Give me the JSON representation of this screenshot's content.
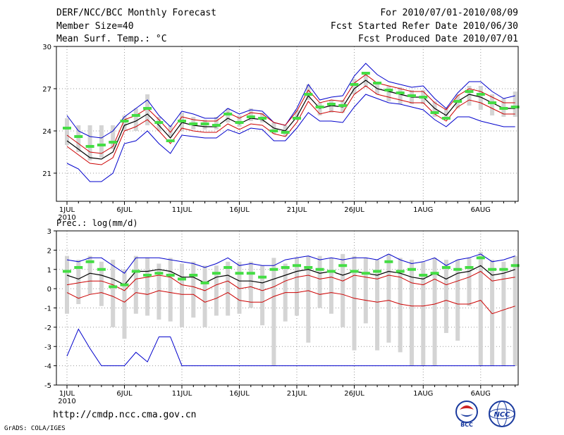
{
  "header": {
    "title": "DERF/NCC/BCC Monthly Forecast",
    "member_size": "Member Size=40",
    "variable1": "Mean Surf. Temp.: °C",
    "period": "For 2010/07/01-2010/08/09",
    "fcst_started": "Fcst Started Refer Date 2010/06/30",
    "fcst_produced": "Fcst Produced Date 2010/07/01"
  },
  "footer": {
    "url": "http://cmdp.ncc.cma.gov.cn",
    "grads": "GrADS: COLA/IGES",
    "logo_bcc_label": "BCC",
    "logo_ncc_label": "NCC"
  },
  "colors": {
    "ensemble_mean": "#000000",
    "upper_bound": "#0000cc",
    "lower_bound": "#0000cc",
    "mean_band": "#cc0000",
    "observation": "#44dd44",
    "spread_bar": "#d4d4d4",
    "grid": "#999999"
  },
  "chart_data": [
    {
      "type": "line",
      "title": "Mean Surf. Temp.: °C",
      "xlabel": "",
      "ylabel": "",
      "x": [
        1,
        2,
        3,
        4,
        5,
        6,
        7,
        8,
        9,
        10,
        11,
        12,
        13,
        14,
        15,
        16,
        17,
        18,
        19,
        20,
        21,
        22,
        23,
        24,
        25,
        26,
        27,
        28,
        29,
        30,
        31,
        32,
        33,
        34,
        35,
        36,
        37,
        38,
        39,
        40
      ],
      "x_tick_labels": [
        "1JUL",
        "6JUL",
        "11JUL",
        "16JUL",
        "21JUL",
        "26JUL",
        "1AUG",
        "6AUG"
      ],
      "x_tick_positions": [
        1,
        6,
        11,
        16,
        21,
        26,
        32,
        37
      ],
      "year_label": "2010",
      "ylim": [
        19,
        30
      ],
      "y_ticks": [
        21,
        24,
        27,
        30
      ],
      "series": [
        {
          "name": "ensemble_mean",
          "values": [
            23.3,
            22.7,
            22.1,
            22.0,
            22.5,
            24.4,
            24.7,
            25.2,
            24.4,
            23.5,
            24.6,
            24.4,
            24.3,
            24.3,
            24.9,
            24.5,
            24.9,
            24.8,
            24.2,
            24.0,
            25.0,
            26.5,
            25.6,
            25.8,
            25.7,
            27.0,
            27.6,
            27.0,
            26.8,
            26.6,
            26.4,
            26.4,
            25.6,
            25.1,
            26.1,
            26.6,
            26.4,
            26.0,
            25.6,
            25.6
          ]
        },
        {
          "name": "upper_bound",
          "values": [
            25.1,
            24.0,
            23.6,
            23.5,
            24.0,
            25.0,
            25.6,
            26.2,
            25.1,
            24.3,
            25.4,
            25.2,
            24.9,
            24.9,
            25.6,
            25.2,
            25.5,
            25.4,
            24.6,
            24.4,
            25.6,
            27.3,
            26.2,
            26.4,
            26.5,
            27.9,
            28.8,
            28.0,
            27.5,
            27.3,
            27.1,
            27.2,
            26.3,
            25.6,
            26.7,
            27.5,
            27.5,
            26.8,
            26.3,
            26.5
          ]
        },
        {
          "name": "lower_bound",
          "values": [
            21.7,
            21.3,
            20.4,
            20.4,
            21.0,
            23.1,
            23.3,
            24.0,
            23.1,
            22.4,
            23.7,
            23.6,
            23.5,
            23.5,
            24.1,
            23.8,
            24.2,
            24.1,
            23.3,
            23.3,
            24.2,
            25.3,
            24.7,
            24.7,
            24.6,
            25.7,
            26.6,
            26.3,
            26.0,
            25.9,
            25.7,
            25.5,
            24.8,
            24.3,
            25.0,
            25.0,
            24.7,
            24.5,
            24.3,
            24.3
          ]
        },
        {
          "name": "mean_plus",
          "values": [
            23.7,
            23.1,
            22.5,
            22.4,
            22.9,
            24.8,
            25.1,
            25.6,
            24.8,
            23.9,
            25.0,
            24.8,
            24.7,
            24.7,
            25.3,
            24.9,
            25.3,
            25.2,
            24.6,
            24.4,
            25.4,
            26.9,
            26.0,
            26.2,
            26.1,
            27.4,
            28.0,
            27.4,
            27.2,
            27.0,
            26.8,
            26.8,
            26.0,
            25.5,
            26.5,
            27.0,
            26.8,
            26.4,
            26.0,
            26.0
          ]
        },
        {
          "name": "mean_minus",
          "values": [
            22.9,
            22.3,
            21.7,
            21.6,
            22.1,
            24.0,
            24.3,
            24.8,
            24.0,
            23.1,
            24.2,
            24.0,
            23.9,
            23.9,
            24.5,
            24.1,
            24.5,
            24.4,
            23.8,
            23.6,
            24.6,
            26.1,
            25.2,
            25.4,
            25.3,
            26.6,
            27.2,
            26.6,
            26.4,
            26.2,
            26.0,
            26.0,
            25.2,
            24.7,
            25.7,
            26.2,
            26.0,
            25.6,
            25.2,
            25.2
          ]
        },
        {
          "name": "observation",
          "values": [
            24.2,
            23.6,
            22.9,
            23.0,
            23.2,
            24.7,
            25.1,
            25.6,
            24.6,
            23.3,
            24.7,
            24.5,
            24.5,
            24.4,
            25.2,
            24.6,
            25.0,
            24.9,
            24.0,
            23.9,
            24.9,
            26.6,
            25.7,
            25.9,
            25.8,
            27.3,
            28.1,
            27.4,
            26.9,
            26.7,
            26.5,
            26.4,
            25.3,
            24.9,
            26.1,
            26.8,
            26.6,
            26.0,
            25.6,
            25.7
          ]
        },
        {
          "name": "spread_bar_top",
          "values": [
            24.9,
            24.4,
            24.4,
            24.4,
            24.4,
            25.1,
            25.6,
            26.6,
            25.0,
            24.4,
            25.3,
            25.0,
            24.8,
            25.0,
            25.6,
            25.1,
            25.6,
            25.3,
            24.6,
            24.4,
            25.5,
            27.3,
            26.0,
            26.2,
            26.2,
            27.7,
            28.2,
            27.4,
            27.2,
            27.1,
            26.9,
            26.9,
            26.1,
            25.6,
            26.6,
            27.2,
            27.2,
            26.6,
            26.3,
            26.8
          ]
        },
        {
          "name": "spread_bar_bottom",
          "values": [
            23.0,
            22.5,
            21.9,
            22.1,
            22.7,
            24.0,
            24.0,
            24.4,
            24.0,
            23.6,
            24.0,
            24.1,
            24.1,
            24.1,
            24.6,
            24.3,
            24.7,
            24.6,
            23.8,
            23.6,
            24.8,
            26.2,
            25.1,
            25.3,
            25.3,
            26.6,
            27.1,
            26.6,
            26.1,
            25.9,
            25.9,
            25.9,
            25.0,
            24.8,
            25.6,
            25.8,
            25.5,
            25.1,
            25.0,
            25.0
          ]
        }
      ]
    },
    {
      "type": "line",
      "title": "Prec.: log(mm/d)",
      "xlabel": "",
      "ylabel": "",
      "x": [
        1,
        2,
        3,
        4,
        5,
        6,
        7,
        8,
        9,
        10,
        11,
        12,
        13,
        14,
        15,
        16,
        17,
        18,
        19,
        20,
        21,
        22,
        23,
        24,
        25,
        26,
        27,
        28,
        29,
        30,
        31,
        32,
        33,
        34,
        35,
        36,
        37,
        38,
        39,
        40
      ],
      "x_tick_labels": [
        "1JUL",
        "6JUL",
        "11JUL",
        "16JUL",
        "21JUL",
        "26JUL",
        "1AUG",
        "6AUG"
      ],
      "x_tick_positions": [
        1,
        6,
        11,
        16,
        21,
        26,
        32,
        37
      ],
      "year_label": "2010",
      "ylim": [
        -5,
        3
      ],
      "y_ticks": [
        -5,
        -4,
        -3,
        -2,
        -1,
        0,
        1,
        2,
        3
      ],
      "series": [
        {
          "name": "ensemble_mean",
          "values": [
            0.7,
            0.5,
            0.8,
            0.7,
            0.5,
            0.2,
            0.9,
            0.9,
            1.0,
            0.9,
            0.6,
            0.6,
            0.3,
            0.6,
            0.7,
            0.4,
            0.4,
            0.3,
            0.5,
            0.7,
            0.9,
            1.0,
            0.8,
            0.9,
            0.7,
            0.9,
            0.8,
            0.7,
            0.9,
            0.8,
            0.6,
            0.5,
            0.8,
            0.5,
            0.8,
            0.9,
            1.2,
            0.7,
            0.8,
            1.0
          ]
        },
        {
          "name": "upper_bound",
          "values": [
            1.5,
            1.4,
            1.6,
            1.6,
            1.2,
            0.8,
            1.6,
            1.6,
            1.6,
            1.5,
            1.4,
            1.3,
            1.1,
            1.3,
            1.6,
            1.2,
            1.3,
            1.2,
            1.2,
            1.5,
            1.6,
            1.7,
            1.5,
            1.6,
            1.5,
            1.6,
            1.6,
            1.5,
            1.8,
            1.5,
            1.3,
            1.4,
            1.6,
            1.2,
            1.5,
            1.6,
            1.8,
            1.4,
            1.5,
            1.7
          ]
        },
        {
          "name": "lower_bound",
          "values": [
            -3.5,
            -2.1,
            -3.1,
            -4.0,
            -4.0,
            -4.0,
            -3.3,
            -3.8,
            -2.5,
            -2.5,
            -4.0,
            -4.0,
            -4.0,
            -4.0,
            -4.0,
            -4.0,
            -4.0,
            -4.0,
            -4.0,
            -4.0,
            -4.0,
            -4.0,
            -4.0,
            -4.0,
            -4.0,
            -4.0,
            -4.0,
            -4.0,
            -4.0,
            -4.0,
            -4.0,
            -4.0,
            -4.0,
            -4.0,
            -4.0,
            -4.0,
            -4.0,
            -4.0,
            -4.0,
            -4.0
          ]
        },
        {
          "name": "mean_plus",
          "values": [
            0.2,
            0.3,
            0.4,
            0.4,
            0.2,
            -0.1,
            0.5,
            0.6,
            0.7,
            0.6,
            0.2,
            0.1,
            -0.1,
            0.2,
            0.4,
            0.0,
            0.1,
            -0.1,
            0.1,
            0.4,
            0.6,
            0.7,
            0.5,
            0.6,
            0.4,
            0.7,
            0.6,
            0.5,
            0.7,
            0.6,
            0.3,
            0.2,
            0.5,
            0.2,
            0.4,
            0.6,
            0.9,
            0.4,
            0.5,
            0.6
          ]
        },
        {
          "name": "mean_minus",
          "values": [
            -0.2,
            -0.5,
            -0.3,
            -0.2,
            -0.4,
            -0.7,
            -0.2,
            -0.3,
            -0.1,
            -0.2,
            -0.3,
            -0.3,
            -0.7,
            -0.5,
            -0.2,
            -0.6,
            -0.7,
            -0.7,
            -0.4,
            -0.2,
            -0.2,
            -0.1,
            -0.3,
            -0.2,
            -0.3,
            -0.5,
            -0.6,
            -0.7,
            -0.6,
            -0.8,
            -0.9,
            -0.9,
            -0.8,
            -0.6,
            -0.8,
            -0.8,
            -0.6,
            -1.3,
            -1.1,
            -0.9
          ]
        },
        {
          "name": "observation",
          "values": [
            0.9,
            1.1,
            1.4,
            1.0,
            0.1,
            0.2,
            0.9,
            0.7,
            0.8,
            0.7,
            0.5,
            0.7,
            0.3,
            0.8,
            1.1,
            0.8,
            0.8,
            0.6,
            1.0,
            1.1,
            1.2,
            1.1,
            1.0,
            0.9,
            1.2,
            0.9,
            0.8,
            0.9,
            1.4,
            0.9,
            1.0,
            0.7,
            0.8,
            1.1,
            1.0,
            1.1,
            1.6,
            1.0,
            1.0,
            1.2
          ]
        },
        {
          "name": "spread_bar_top",
          "values": [
            1.7,
            1.5,
            1.7,
            1.4,
            1.5,
            1.0,
            1.7,
            1.6,
            1.3,
            1.6,
            1.3,
            1.4,
            1.2,
            1.2,
            1.4,
            1.4,
            1.4,
            1.2,
            1.6,
            1.3,
            1.6,
            1.7,
            1.7,
            1.6,
            1.8,
            1.7,
            1.6,
            1.5,
            1.8,
            1.6,
            1.5,
            1.4,
            1.6,
            1.5,
            1.5,
            1.6,
            1.9,
            1.5,
            1.4,
            1.7
          ]
        },
        {
          "name": "spread_bar_bottom",
          "values": [
            -1.3,
            -0.8,
            -0.3,
            -0.9,
            -2.0,
            -2.6,
            -1.3,
            -1.4,
            -1.6,
            -1.7,
            -2.0,
            -1.5,
            -2.0,
            -1.4,
            -1.4,
            -1.3,
            -1.0,
            -1.9,
            -4.0,
            -1.7,
            -1.4,
            -2.8,
            -1.0,
            -1.3,
            -2.0,
            -3.2,
            -1.8,
            -3.2,
            -2.8,
            -3.3,
            -4.0,
            -4.0,
            -4.0,
            -2.3,
            -2.7,
            -0.9,
            -4.0,
            -4.0,
            -4.0,
            -4.0
          ]
        }
      ]
    }
  ]
}
